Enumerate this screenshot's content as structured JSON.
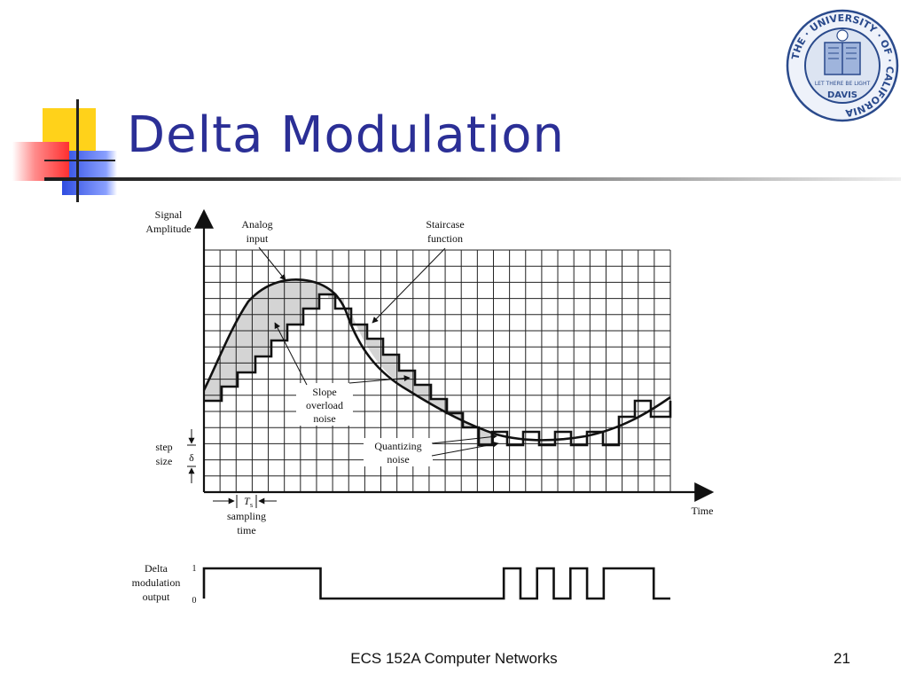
{
  "slide": {
    "title": "Delta Modulation",
    "footer_course": "ECS 152A  Computer Networks",
    "page_number": "21"
  },
  "logo": {
    "ring_text": "THE · UNIVERSITY · OF · CALIFORNIA",
    "banner_text": "LET THERE BE LIGHT",
    "campus_text": "DAVIS",
    "ring_color": "#2a4a8c"
  },
  "diagram": {
    "y_axis_label_1": "Signal",
    "y_axis_label_2": "Amplitude",
    "x_axis_label": "Time",
    "analog_input_1": "Analog",
    "analog_input_2": "input",
    "staircase_1": "Staircase",
    "staircase_2": "function",
    "slope_1": "Slope",
    "slope_2": "overload",
    "slope_3": "noise",
    "quant_1": "Quantizing",
    "quant_2": "noise",
    "step_1": "step",
    "step_2": "size",
    "delta_symbol": "δ",
    "ts_symbol": "T",
    "ts_sub": "s",
    "sampling_1": "sampling",
    "sampling_2": "time",
    "output_1": "Delta",
    "output_2": "modulation",
    "output_3": "output",
    "level_one": "1",
    "level_zero": "0",
    "bits": [
      1,
      1,
      1,
      1,
      1,
      1,
      1,
      0,
      0,
      0,
      0,
      0,
      0,
      0,
      0,
      0,
      0,
      0,
      1,
      0,
      1,
      0,
      1,
      0,
      1,
      1,
      1,
      0
    ]
  }
}
